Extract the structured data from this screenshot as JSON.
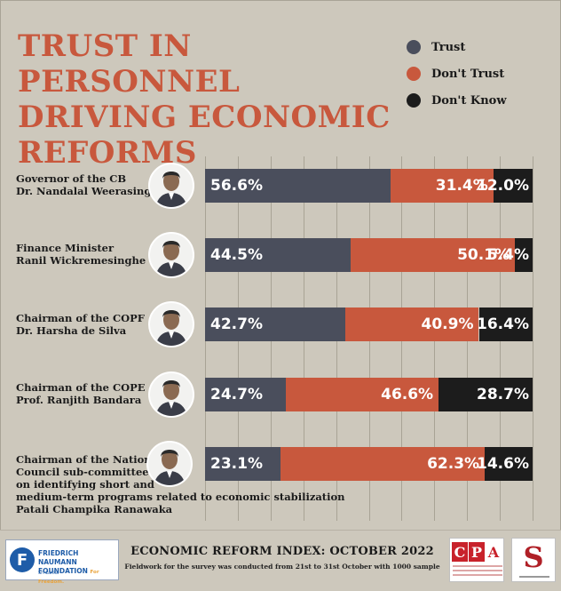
{
  "chart_data": {
    "type": "bar",
    "orientation": "horizontal-stacked",
    "title": "TRUST IN PERSONNEL DRIVING ECONOMIC REFORMS",
    "legend_placement": "top-right",
    "series": [
      {
        "name": "Trust",
        "color": "#4a4e5c",
        "values": [
          56.6,
          44.5,
          42.7,
          24.7,
          23.1
        ]
      },
      {
        "name": "Don't Trust",
        "color": "#c8583d",
        "values": [
          31.4,
          50.1,
          40.9,
          46.6,
          62.3
        ]
      },
      {
        "name": "Don't Know",
        "color": "#1c1c1c",
        "values": [
          12.0,
          5.4,
          16.4,
          28.7,
          14.6
        ]
      }
    ],
    "categories": [
      {
        "lines": [
          "Governor of the CB",
          "Dr. Nandalal Weerasinghe"
        ]
      },
      {
        "lines": [
          "Finance Minister",
          "Ranil Wickremesinghe"
        ]
      },
      {
        "lines": [
          "Chairman of the COPF",
          "Dr. Harsha de Silva"
        ]
      },
      {
        "lines": [
          "Chairman of the COPE",
          "Prof. Ranjith Bandara"
        ]
      },
      {
        "lines": [
          "Chairman of the National",
          "Council sub-committee",
          "on identifying short and",
          "medium-term programs related to economic stabilization",
          "Patali Champika Ranawaka"
        ]
      }
    ],
    "labels": [
      [
        "56.6%",
        "31.4%",
        "12.0%"
      ],
      [
        "44.5%",
        "50.1%",
        "5.4%"
      ],
      [
        "42.7%",
        "40.9%",
        "16.4%"
      ],
      [
        "24.7%",
        "46.6%",
        "28.7%"
      ],
      [
        "23.1%",
        "62.3%",
        "14.6%"
      ]
    ]
  },
  "title": {
    "line1": "TRUST IN PERSONNEL",
    "line2": "DRIVING ECONOMIC",
    "line3": "REFORMS"
  },
  "legend": [
    {
      "label": "Trust",
      "color": "#4a4e5c"
    },
    {
      "label": "Don't Trust",
      "color": "#c8583d"
    },
    {
      "label": "Don't Know",
      "color": "#1c1c1c"
    }
  ],
  "footer": {
    "title": "ECONOMIC REFORM INDEX: OCTOBER 2022",
    "subtitle": "Fieldwork for the survey was conducted from 21st to 31st October with 1000 sample",
    "fnf_line1": "FRIEDRICH NAUMANN",
    "fnf_line2": "FOUNDATION",
    "fnf_tag": "For Freedom.",
    "fnf_country": "Sri Lanka",
    "fnf_mark": "F",
    "cpa_letters": [
      "C",
      "P",
      "A"
    ],
    "s_mark": "S"
  }
}
